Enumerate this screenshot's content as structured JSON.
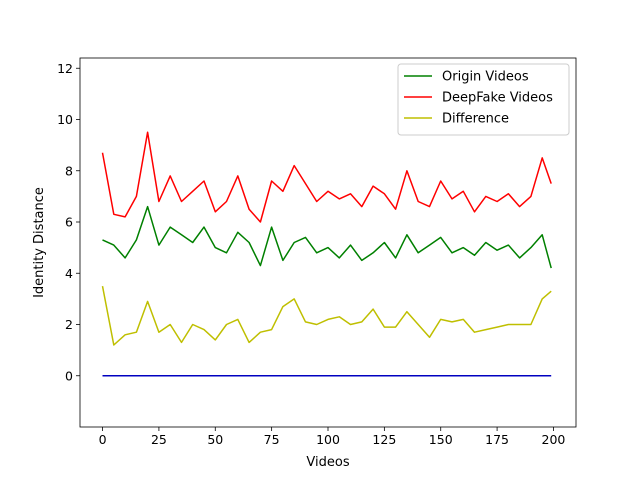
{
  "chart_data": {
    "type": "line",
    "xlabel": "Videos",
    "ylabel": "Identity Distance",
    "xlim": [
      -10,
      210
    ],
    "ylim": [
      -2,
      12.4
    ],
    "xticks": [
      0,
      25,
      50,
      75,
      100,
      125,
      150,
      175,
      200
    ],
    "yticks": [
      0,
      2,
      4,
      6,
      8,
      10,
      12
    ],
    "grid": false,
    "legend_position": "top-right",
    "x": [
      0,
      5,
      10,
      15,
      20,
      25,
      30,
      35,
      40,
      45,
      50,
      55,
      60,
      65,
      70,
      75,
      80,
      85,
      90,
      95,
      100,
      105,
      110,
      115,
      120,
      125,
      130,
      135,
      140,
      145,
      150,
      155,
      160,
      165,
      170,
      175,
      180,
      185,
      190,
      195,
      199
    ],
    "series": [
      {
        "name": "Origin Videos",
        "color": "#008000",
        "values": [
          5.3,
          5.1,
          4.6,
          5.3,
          6.6,
          5.1,
          5.8,
          5.5,
          5.2,
          5.8,
          5.0,
          4.8,
          5.6,
          5.2,
          4.3,
          5.8,
          4.5,
          5.2,
          5.4,
          4.8,
          5.0,
          4.6,
          5.1,
          4.5,
          4.8,
          5.2,
          4.6,
          5.5,
          4.8,
          5.1,
          5.4,
          4.8,
          5.0,
          4.7,
          5.2,
          4.9,
          5.1,
          4.6,
          5.0,
          5.5,
          4.2
        ]
      },
      {
        "name": "DeepFake Videos",
        "color": "#ff0000",
        "values": [
          8.7,
          6.3,
          6.2,
          7.0,
          9.5,
          6.8,
          7.8,
          6.8,
          7.2,
          7.6,
          6.4,
          6.8,
          7.8,
          6.5,
          6.0,
          7.6,
          7.2,
          8.2,
          7.5,
          6.8,
          7.2,
          6.9,
          7.1,
          6.6,
          7.4,
          7.1,
          6.5,
          8.0,
          6.8,
          6.6,
          7.6,
          6.9,
          7.2,
          6.4,
          7.0,
          6.8,
          7.1,
          6.6,
          7.0,
          8.5,
          7.5
        ]
      },
      {
        "name": "Difference",
        "color": "#bfbf00",
        "values": [
          3.5,
          1.2,
          1.6,
          1.7,
          2.9,
          1.7,
          2.0,
          1.3,
          2.0,
          1.8,
          1.4,
          2.0,
          2.2,
          1.3,
          1.7,
          1.8,
          2.7,
          3.0,
          2.1,
          2.0,
          2.2,
          2.3,
          2.0,
          2.1,
          2.6,
          1.9,
          1.9,
          2.5,
          2.0,
          1.5,
          2.2,
          2.1,
          2.2,
          1.7,
          1.8,
          1.9,
          2.0,
          2.0,
          2.0,
          3.0,
          3.3
        ]
      },
      {
        "name": "",
        "color": "#0000c0",
        "values": [
          0,
          0,
          0,
          0,
          0,
          0,
          0,
          0,
          0,
          0,
          0,
          0,
          0,
          0,
          0,
          0,
          0,
          0,
          0,
          0,
          0,
          0,
          0,
          0,
          0,
          0,
          0,
          0,
          0,
          0,
          0,
          0,
          0,
          0,
          0,
          0,
          0,
          0,
          0,
          0,
          0
        ]
      }
    ]
  }
}
